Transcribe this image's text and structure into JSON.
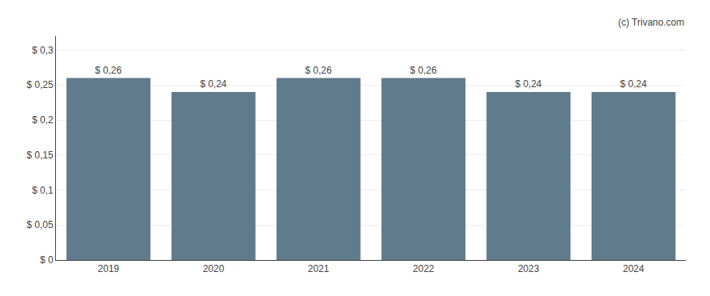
{
  "chart_data": {
    "type": "bar",
    "categories": [
      "2019",
      "2020",
      "2021",
      "2022",
      "2023",
      "2024"
    ],
    "values": [
      0.26,
      0.24,
      0.26,
      0.26,
      0.24,
      0.24
    ],
    "value_labels": [
      "$ 0,26",
      "$ 0,24",
      "$ 0,26",
      "$ 0,26",
      "$ 0,24",
      "$ 0,24"
    ],
    "data_labels": true,
    "color": "#607b8b",
    "ylim": [
      0,
      0.32
    ],
    "yticks": [
      {
        "value": 0,
        "label": "$ 0"
      },
      {
        "value": 0.05,
        "label": "$ 0,05"
      },
      {
        "value": 0.1,
        "label": "$ 0,1"
      },
      {
        "value": 0.15,
        "label": "$ 0,15"
      },
      {
        "value": 0.2,
        "label": "$ 0,2"
      },
      {
        "value": 0.25,
        "label": "$ 0,25"
      },
      {
        "value": 0.3,
        "label": "$ 0,3"
      }
    ],
    "grid": true,
    "annotations": [
      "(c) Trivano.com"
    ]
  }
}
